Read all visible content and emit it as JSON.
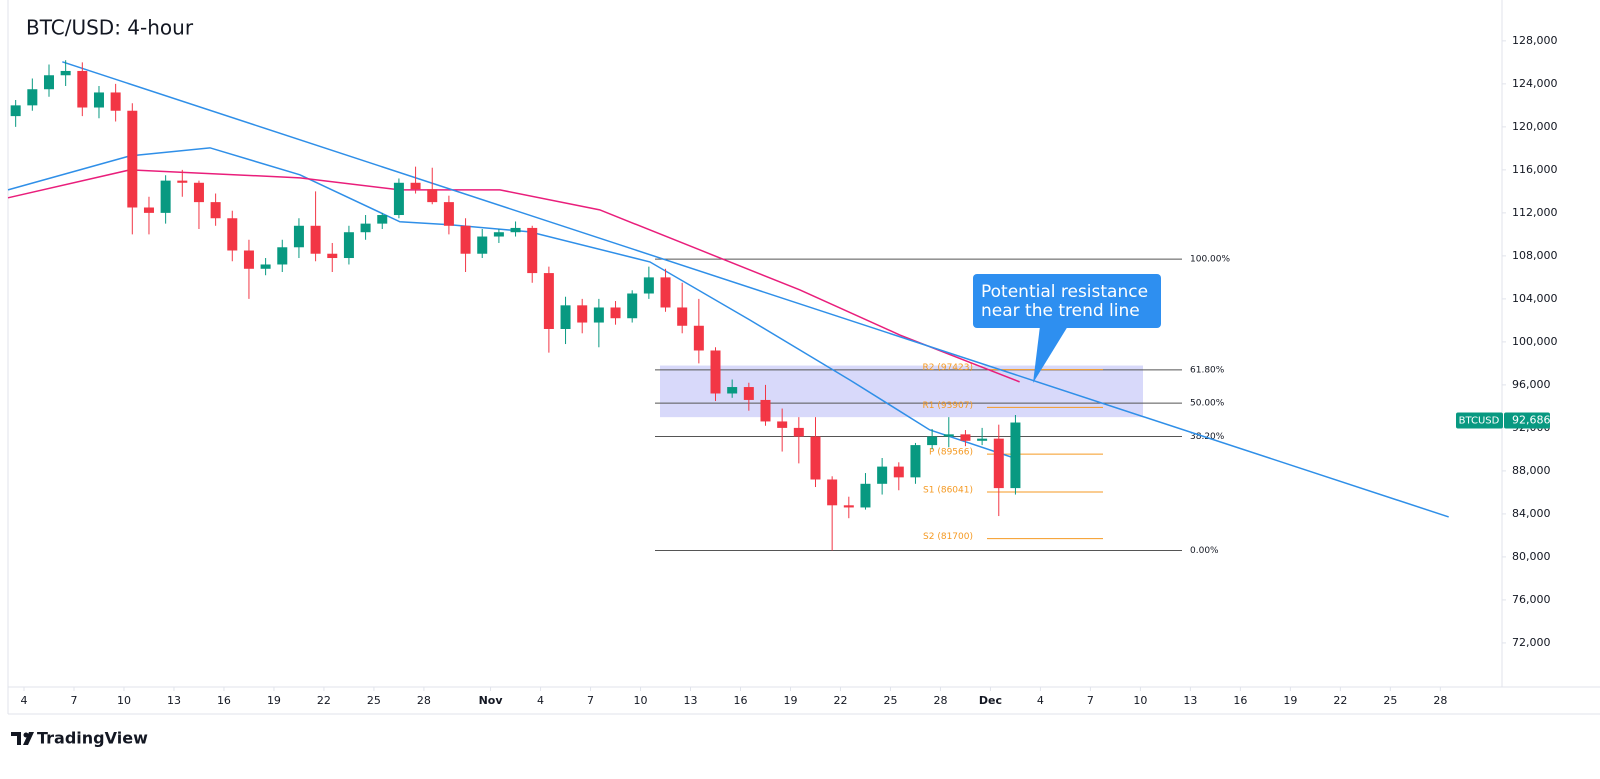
{
  "chart_data": {
    "type": "candlestick",
    "title": "BTC/USD: 4-hour",
    "xlim": [
      2.04,
      91.7
    ],
    "ylim": [
      67900,
      131800
    ],
    "xticks": [
      {
        "value": 3,
        "label": "4"
      },
      {
        "value": 6,
        "label": "7"
      },
      {
        "value": 9,
        "label": "10"
      },
      {
        "value": 12,
        "label": "13"
      },
      {
        "value": 15,
        "label": "16"
      },
      {
        "value": 18,
        "label": "19"
      },
      {
        "value": 21,
        "label": "22"
      },
      {
        "value": 24,
        "label": "25"
      },
      {
        "value": 27,
        "label": "28"
      },
      {
        "value": 31,
        "label": "Nov"
      },
      {
        "value": 34,
        "label": "4"
      },
      {
        "value": 37,
        "label": "7"
      },
      {
        "value": 40,
        "label": "10"
      },
      {
        "value": 43,
        "label": "13"
      },
      {
        "value": 46,
        "label": "16"
      },
      {
        "value": 49,
        "label": "19"
      },
      {
        "value": 52,
        "label": "22"
      },
      {
        "value": 55,
        "label": "25"
      },
      {
        "value": 58,
        "label": "28"
      },
      {
        "value": 61,
        "label": "Dec"
      },
      {
        "value": 64,
        "label": "4"
      },
      {
        "value": 67,
        "label": "7"
      },
      {
        "value": 70,
        "label": "10"
      },
      {
        "value": 73,
        "label": "13"
      },
      {
        "value": 76,
        "label": "16"
      },
      {
        "value": 79,
        "label": "19"
      },
      {
        "value": 82,
        "label": "22"
      },
      {
        "value": 85,
        "label": "25"
      },
      {
        "value": 88,
        "label": "28"
      }
    ],
    "yticks": [
      {
        "value": 72000,
        "label": "72,000"
      },
      {
        "value": 76000,
        "label": "76,000"
      },
      {
        "value": 80000,
        "label": "80,000"
      },
      {
        "value": 84000,
        "label": "84,000"
      },
      {
        "value": 88000,
        "label": "88,000"
      },
      {
        "value": 92000,
        "label": "92,000"
      },
      {
        "value": 96000,
        "label": "96,000"
      },
      {
        "value": 100000,
        "label": "100,000"
      },
      {
        "value": 104000,
        "label": "104,000"
      },
      {
        "value": 108000,
        "label": "108,000"
      },
      {
        "value": 112000,
        "label": "112,000"
      },
      {
        "value": 116000,
        "label": "116,000"
      },
      {
        "value": 120000,
        "label": "120,000"
      },
      {
        "value": 124000,
        "label": "124,000"
      },
      {
        "value": 128000,
        "label": "128,000"
      }
    ],
    "up_color": "#089981",
    "down_color": "#f23645",
    "x": [
      2.5,
      3.5,
      4.5,
      5.5,
      6.5,
      7.5,
      8.5,
      9.5,
      10.5,
      11.5,
      12.5,
      13.5,
      14.5,
      15.5,
      16.5,
      17.5,
      18.5,
      19.5,
      20.5,
      21.5,
      22.5,
      23.5,
      24.5,
      25.5,
      26.5,
      27.5,
      28.5,
      29.5,
      30.5,
      31.5,
      32.5,
      33.5,
      34.5,
      35.5,
      36.5,
      37.5,
      38.5,
      39.5,
      40.5,
      41.5,
      42.5,
      43.5,
      44.5,
      45.5,
      46.5,
      47.5,
      48.5,
      49.5,
      50.5,
      51.5,
      52.5,
      53.5,
      54.5,
      55.5,
      56.5,
      57.5,
      58.5,
      59.5,
      60.5,
      61.5,
      62.5
    ],
    "open": [
      121000,
      122000,
      123500,
      124800,
      125200,
      121800,
      123200,
      121500,
      112500,
      112000,
      115000,
      114800,
      113000,
      111500,
      108500,
      106800,
      107200,
      108800,
      110800,
      108200,
      107800,
      110200,
      111000,
      111800,
      114800,
      114200,
      113000,
      110800,
      108200,
      109800,
      110200,
      110600,
      106400,
      101200,
      103400,
      101800,
      103200,
      102200,
      104500,
      106000,
      103200,
      101500,
      99200,
      95200,
      95800,
      94600,
      92600,
      92000,
      91200,
      87200,
      84800,
      84600,
      86800,
      88400,
      87400,
      90400,
      91200,
      91400,
      90800,
      91000,
      86400
    ],
    "high": [
      122500,
      124500,
      125800,
      126200,
      126000,
      123800,
      124000,
      122200,
      113500,
      115500,
      116000,
      115000,
      113800,
      112200,
      109500,
      107800,
      109500,
      111500,
      114000,
      109200,
      110800,
      111800,
      112000,
      115200,
      116300,
      116200,
      113600,
      111500,
      110500,
      110500,
      111200,
      110800,
      107000,
      104200,
      104000,
      104000,
      103800,
      104800,
      107000,
      106800,
      105500,
      104000,
      99500,
      96500,
      96200,
      96000,
      93800,
      93000,
      93000,
      87500,
      85600,
      87800,
      89200,
      88800,
      90600,
      91900,
      93000,
      91800,
      92000,
      92300,
      93200
    ],
    "low": [
      120000,
      121500,
      122800,
      123800,
      121000,
      120800,
      120500,
      110000,
      110000,
      111000,
      113500,
      110500,
      110800,
      107500,
      104000,
      106200,
      106500,
      107800,
      107500,
      106500,
      107200,
      109500,
      110500,
      111500,
      113800,
      112800,
      110000,
      106500,
      107800,
      109200,
      109800,
      105500,
      99000,
      99800,
      100800,
      99500,
      101600,
      101800,
      104000,
      102800,
      100800,
      98000,
      94500,
      94800,
      93600,
      92200,
      89800,
      88700,
      86500,
      80600,
      83600,
      84400,
      85800,
      86200,
      86800,
      90000,
      90200,
      90300,
      90400,
      83800,
      85800
    ],
    "close": [
      122000,
      123500,
      124800,
      125200,
      121800,
      123200,
      121500,
      112500,
      112000,
      115000,
      114800,
      113000,
      111500,
      108500,
      106800,
      107200,
      108800,
      110800,
      108200,
      107800,
      110200,
      111000,
      111800,
      114800,
      114200,
      113000,
      110800,
      108200,
      109800,
      110200,
      110600,
      106400,
      101200,
      103400,
      101800,
      103200,
      102200,
      104500,
      106000,
      103200,
      101500,
      99200,
      95200,
      95800,
      94600,
      92600,
      92000,
      91200,
      87200,
      84800,
      84600,
      86800,
      88400,
      87400,
      90400,
      91200,
      91400,
      90800,
      91000,
      86400,
      92500
    ],
    "lines": [
      {
        "color": "#2f8fe8",
        "x": [
          2.04,
          9.36,
          14.16,
          19.56,
          25.56,
          28.56,
          33.36,
          40.56,
          46.55,
          52.55,
          57.35,
          62.75
        ],
        "values": [
          114140,
          117300,
          118050,
          115540,
          111170,
          110900,
          110230,
          107440,
          102050,
          96470,
          91820,
          89030
        ]
      },
      {
        "color": "#e91e7b",
        "x": [
          2.04,
          9.36,
          19.56,
          25.56,
          31.56,
          37.55,
          43.55,
          49.55,
          55.55,
          62.75
        ],
        "values": [
          113400,
          116000,
          115260,
          114140,
          114140,
          112280,
          108560,
          104840,
          100650,
          96280
        ]
      },
      {
        "color": "#2f8fe8",
        "x": [
          5.3,
          88.5
        ],
        "values": [
          126050,
          83720
        ]
      }
    ],
    "zone": [
      93000,
      97800
    ],
    "levels": [
      {
        "value": 107700,
        "label": "100.00%"
      },
      {
        "value": 97400,
        "label": "61.80%"
      },
      {
        "value": 94300,
        "label": "50.00%"
      },
      {
        "value": 91200,
        "label": "38.20%"
      },
      {
        "value": 80600,
        "label": "0.00%"
      }
    ],
    "pivots": [
      {
        "value": 97423,
        "label": "R2 (97423)"
      },
      {
        "value": 93907,
        "label": "R1 (93907)"
      },
      {
        "value": 89566,
        "label": "P (89566)"
      },
      {
        "value": 86041,
        "label": "S1 (86041)"
      },
      {
        "value": 81700,
        "label": "S2 (81700)"
      }
    ],
    "annotation": [
      "Potential resistance",
      "near the trend line"
    ],
    "price_tag": {
      "symbol": "BTCUSD",
      "value": 92686,
      "label": "92,686"
    }
  },
  "brand": "TradingView"
}
